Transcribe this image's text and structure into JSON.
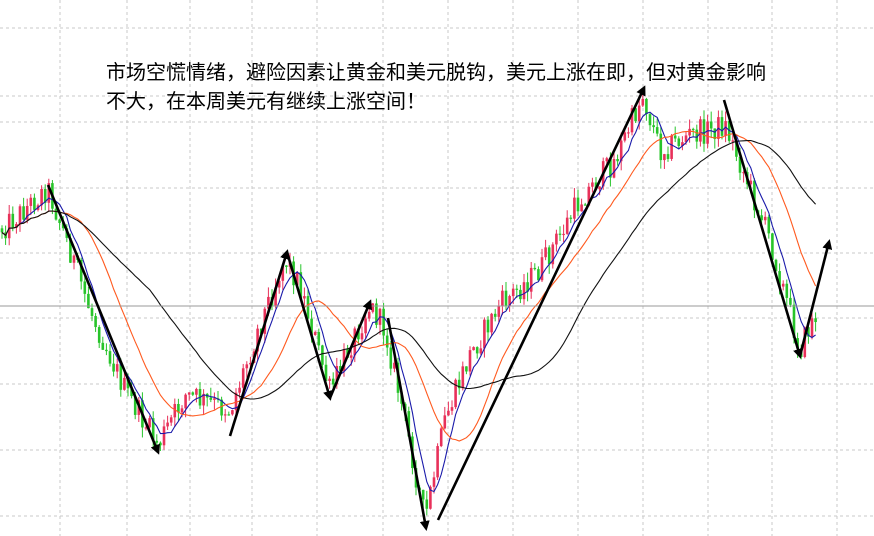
{
  "chart_data": {
    "type": "candlestick",
    "annotation_lines": [
      "市场空慌情绪，避险因素让黄金和美元脱钩，美元上涨在即，但对黄金影响",
      "不大，在本周美元有继续上涨空间！"
    ],
    "grid": true,
    "series": [
      {
        "kind": "candles",
        "up_color": "#e8315a",
        "down_color": "#27c42a"
      },
      {
        "kind": "moving-average",
        "color": "#1a1aaa"
      },
      {
        "kind": "moving-average",
        "color": "#ff5a1f"
      },
      {
        "kind": "moving-average",
        "color": "#111111"
      },
      {
        "kind": "trend-arrows",
        "color": "#000000"
      }
    ],
    "price_path": [
      [
        0,
        230
      ],
      [
        18,
        215
      ],
      [
        48,
        188
      ],
      [
        70,
        250
      ],
      [
        90,
        310
      ],
      [
        125,
        390
      ],
      [
        158,
        445
      ],
      [
        185,
        395
      ],
      [
        230,
        410
      ],
      [
        258,
        330
      ],
      [
        285,
        258
      ],
      [
        300,
        285
      ],
      [
        330,
        392
      ],
      [
        350,
        345
      ],
      [
        370,
        305
      ],
      [
        385,
        330
      ],
      [
        405,
        420
      ],
      [
        425,
        520
      ],
      [
        445,
        420
      ],
      [
        470,
        355
      ],
      [
        500,
        305
      ],
      [
        540,
        270
      ],
      [
        580,
        200
      ],
      [
        615,
        160
      ],
      [
        643,
        95
      ],
      [
        660,
        150
      ],
      [
        690,
        135
      ],
      [
        725,
        125
      ],
      [
        745,
        175
      ],
      [
        770,
        240
      ],
      [
        800,
        350
      ],
      [
        810,
        325
      ],
      [
        818,
        312
      ]
    ]
  }
}
